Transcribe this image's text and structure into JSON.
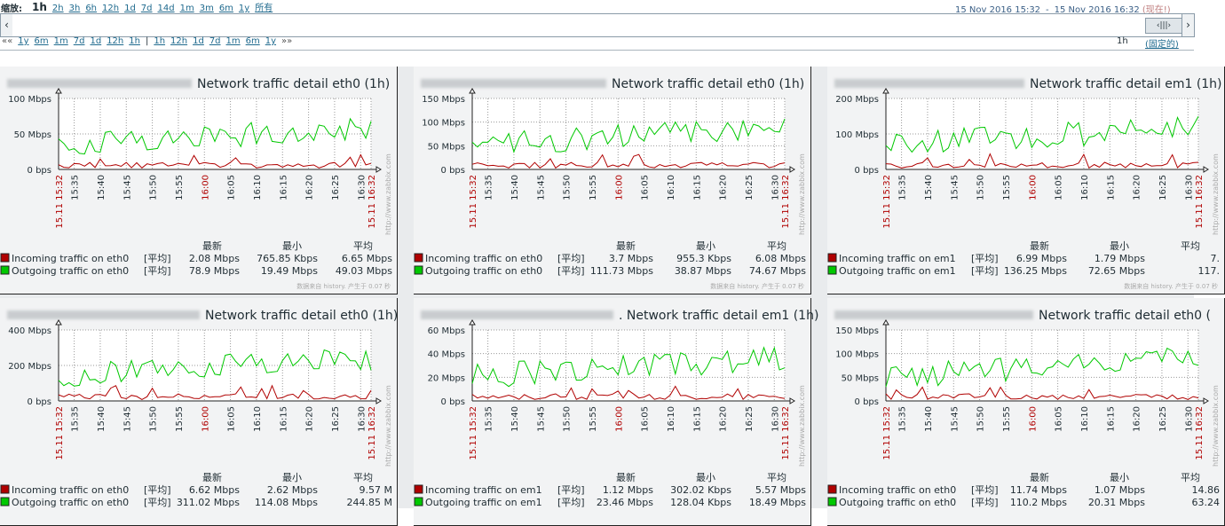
{
  "toolbar": {
    "zoom_label": "缩放:",
    "zoom_options": [
      "1h",
      "2h",
      "3h",
      "6h",
      "12h",
      "1d",
      "7d",
      "14d",
      "1m",
      "3m",
      "6m",
      "1y",
      "所有"
    ],
    "selected_zoom": "1h",
    "period_from": "15 Nov 2016 15:32",
    "period_sep": "-",
    "period_to": "15 Nov 2016 16:32",
    "period_now_label": "(现在!)",
    "nav_back_links": [
      "««",
      "1y",
      "6m",
      "1m",
      "7d",
      "1d",
      "12h",
      "1h"
    ],
    "nav_separator": "|",
    "nav_forward_links": [
      "1h",
      "12h",
      "1d",
      "7d",
      "1m",
      "6m",
      "1y",
      "»»"
    ],
    "period_length": "1h",
    "fixed_label": "(固定的)"
  },
  "legend_headers": {
    "last": "最新",
    "min": "最小",
    "avg": "平均"
  },
  "legend_func": "[平均]",
  "watermark": "http://www.zabbix.com",
  "footer_note": "数据来自 history. 产生于 0.07 秒",
  "time_ticks": [
    "15.11 15:32",
    "15:35",
    "15:40",
    "15:45",
    "15:50",
    "15:55",
    "16:00",
    "16:05",
    "16:10",
    "16:15",
    "16:20",
    "16:25",
    "16:30",
    "15.11 16:32"
  ],
  "colors": {
    "incoming": "#b00000",
    "outgoing": "#00c800",
    "highlight_tick": "#b00000"
  },
  "graphs": [
    {
      "title": "Network traffic detail eth0 (1h)",
      "y_labels": [
        "100 Mbps",
        "50 Mbps",
        "0 bps"
      ],
      "series": [
        {
          "name": "Incoming traffic on eth0",
          "last": "2.08 Mbps",
          "min": "765.85 Kbps",
          "avg": "6.65 Mbps"
        },
        {
          "name": "Outgoing traffic on eth0",
          "last": "78.9 Mbps",
          "min": "19.49 Mbps",
          "avg": "49.03 Mbps"
        }
      ]
    },
    {
      "title": "Network traffic detail eth0 (1h)",
      "y_labels": [
        "150 Mbps",
        "100 Mbps",
        "50 Mbps",
        "0 bps"
      ],
      "series": [
        {
          "name": "Incoming traffic on eth0",
          "last": "3.7 Mbps",
          "min": "955.3 Kbps",
          "avg": "6.08 Mbps"
        },
        {
          "name": "Outgoing traffic on eth0",
          "last": "111.73 Mbps",
          "min": "38.87 Mbps",
          "avg": "74.67 Mbps"
        }
      ]
    },
    {
      "title": "Network traffic detail em1 (1h)",
      "y_labels": [
        "200 Mbps",
        "100 Mbps",
        "0 bps"
      ],
      "series": [
        {
          "name": "Incoming traffic on em1",
          "last": "6.99 Mbps",
          "min": "1.79 Mbps",
          "avg": "7."
        },
        {
          "name": "Outgoing traffic on em1",
          "last": "136.25 Mbps",
          "min": "72.65 Mbps",
          "avg": "117."
        }
      ]
    },
    {
      "title": "Network traffic detail eth0 (1h)",
      "y_labels": [
        "400 Mbps",
        "200 Mbps",
        "0 bps"
      ],
      "series": [
        {
          "name": "Incoming traffic on eth0",
          "last": "6.62 Mbps",
          "min": "2.62 Mbps",
          "avg": "9.57 M"
        },
        {
          "name": "Outgoing traffic on eth0",
          "last": "311.02 Mbps",
          "min": "114.08 Mbps",
          "avg": "244.85 M"
        }
      ]
    },
    {
      "title": ". Network traffic detail em1 (1h)",
      "y_labels": [
        "60 Mbps",
        "40 Mbps",
        "20 Mbps",
        "0 bps"
      ],
      "series": [
        {
          "name": "Incoming traffic on em1",
          "last": "1.12 Mbps",
          "min": "302.02 Kbps",
          "avg": "5.57 Mbps"
        },
        {
          "name": "Outgoing traffic on em1",
          "last": "23.46 Mbps",
          "min": "128.04 Kbps",
          "avg": "18.49 Mbps"
        }
      ]
    },
    {
      "title": "Network traffic detail eth0 (",
      "y_labels": [
        "150 Mbps",
        "100 Mbps",
        "50 Mbps",
        "0 bps"
      ],
      "series": [
        {
          "name": "Incoming traffic on eth0",
          "last": "11.74 Mbps",
          "min": "1.07 Mbps",
          "avg": "14.86"
        },
        {
          "name": "Outgoing traffic on eth0",
          "last": "110.2 Mbps",
          "min": "20.31 Mbps",
          "avg": "63.24"
        }
      ]
    }
  ]
}
